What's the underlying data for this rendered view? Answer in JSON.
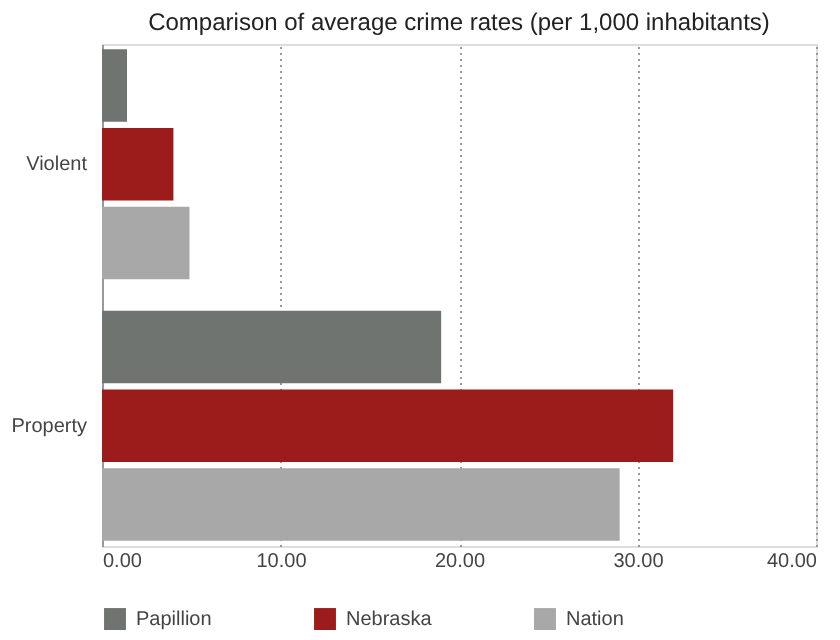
{
  "chart_data": {
    "type": "bar",
    "orientation": "horizontal",
    "title": "Comparison of average crime rates (per 1,000 inhabitants)",
    "categories": [
      "Violent",
      "Property"
    ],
    "series": [
      {
        "name": "Papillion",
        "color": "#6f7470",
        "values": [
          1.4,
          19.0
        ]
      },
      {
        "name": "Nebraska",
        "color": "#9b1c1a",
        "values": [
          4.0,
          32.0
        ]
      },
      {
        "name": "Nation",
        "color": "#a8a8a8",
        "values": [
          4.9,
          29.0
        ]
      }
    ],
    "xlim": [
      0,
      40
    ],
    "xticks": [
      {
        "value": 0,
        "label": "0.00"
      },
      {
        "value": 10,
        "label": "10.00"
      },
      {
        "value": 20,
        "label": "20.00"
      },
      {
        "value": 30,
        "label": "30.00"
      },
      {
        "value": 40,
        "label": "40.00"
      }
    ],
    "grid": "x",
    "legend": "bottom"
  }
}
